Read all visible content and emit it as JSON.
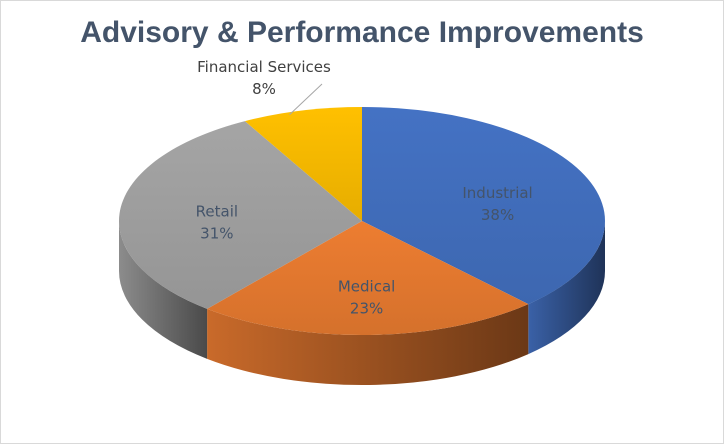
{
  "chart_data": {
    "type": "pie",
    "title": "Advisory & Performance Improvements",
    "categories": [
      "Industrial",
      "Medical",
      "Retail",
      "Financial Services"
    ],
    "values": [
      38,
      23,
      31,
      8
    ],
    "labels": [
      "38%",
      "23%",
      "31%",
      "8%"
    ],
    "colors": [
      "#4472c4",
      "#ed7d31",
      "#a5a5a5",
      "#ffc000"
    ],
    "style": "3d"
  }
}
